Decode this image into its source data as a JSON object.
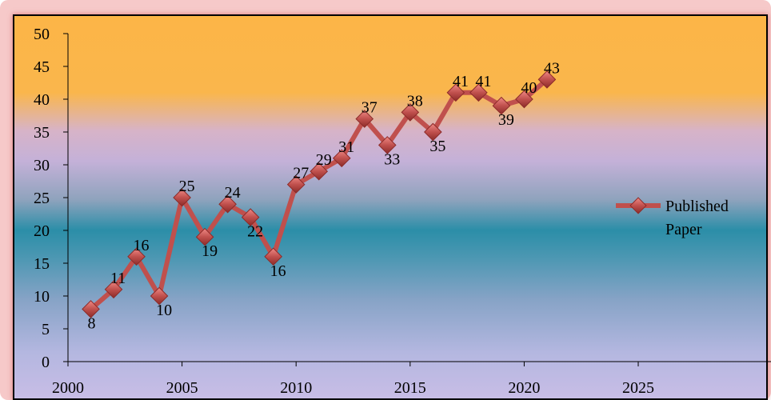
{
  "chart_data": {
    "type": "line",
    "title": "",
    "xlabel": "",
    "ylabel": "",
    "xlim": [
      2000,
      2025
    ],
    "ylim": [
      0,
      50
    ],
    "xticks": [
      2000,
      2005,
      2010,
      2015,
      2020,
      2025
    ],
    "yticks": [
      0,
      5,
      10,
      15,
      20,
      25,
      30,
      35,
      40,
      45,
      50
    ],
    "grid": false,
    "legend_position": "right",
    "series": [
      {
        "name": "Published Paper",
        "color": "#c0504d",
        "x": [
          2001,
          2002,
          2003,
          2004,
          2005,
          2006,
          2007,
          2008,
          2009,
          2010,
          2011,
          2012,
          2013,
          2014,
          2015,
          2016,
          2017,
          2018,
          2019,
          2020,
          2021
        ],
        "y": [
          8,
          11,
          16,
          10,
          25,
          19,
          24,
          22,
          16,
          27,
          29,
          31,
          37,
          33,
          38,
          35,
          41,
          41,
          39,
          40,
          43
        ]
      }
    ],
    "legend": {
      "line1": "Published",
      "line2": "Paper"
    }
  }
}
